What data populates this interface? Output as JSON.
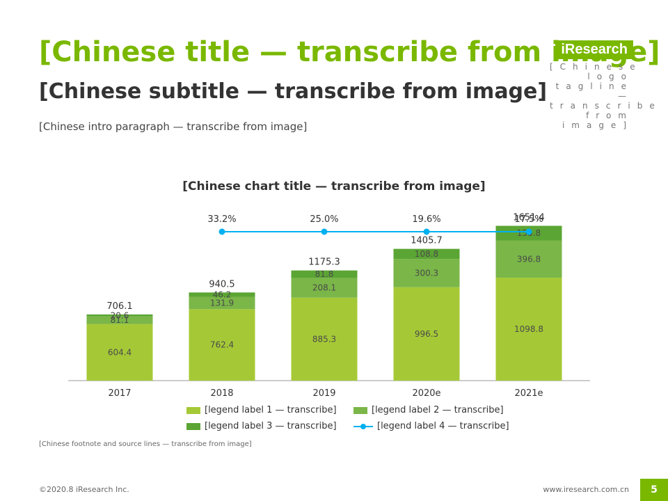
{
  "page": {
    "title": "[Chinese title — transcribe from image]",
    "subtitle": "[Chinese subtitle — transcribe from image]",
    "intro": "[Chinese intro paragraph — transcribe from image]",
    "logo_text": "iResearch",
    "logo_subtext": "[Chinese logo tagline — transcribe from image]",
    "note": "[Chinese footnote and source lines — transcribe from image]",
    "copyright": "©2020.8 iResearch Inc.",
    "website": "www.iresearch.com.cn",
    "page_number": "5",
    "colors": {
      "accent": "#7ab800",
      "game_market": "#a5c936",
      "streaming_market": "#7ab648",
      "commercial_market": "#5ba534",
      "growth_line": "#00b0f0"
    }
  },
  "chart_data": {
    "type": "bar",
    "title": "[Chinese chart title — transcribe from image]",
    "categories": [
      "2017",
      "2018",
      "2019",
      "2020e",
      "2021e"
    ],
    "series": [
      {
        "name": "[legend label 1 — transcribe]",
        "values": [
          604.4,
          762.4,
          885.3,
          996.5,
          1098.8
        ]
      },
      {
        "name": "[legend label 2 — transcribe]",
        "values": [
          81.1,
          131.9,
          208.1,
          300.3,
          396.8
        ]
      },
      {
        "name": "[legend label 3 — transcribe]",
        "values": [
          20.6,
          46.2,
          81.8,
          108.8,
          155.8
        ]
      }
    ],
    "totals": [
      706.1,
      940.5,
      1175.3,
      1405.7,
      1651.4
    ],
    "totals_labels": [
      "706.1",
      "940.5",
      "1175.3",
      "1405.7",
      "1651.4"
    ],
    "growth": {
      "name": "[legend label 4 — transcribe]",
      "values": [
        33.2,
        25.0,
        19.6,
        17.5
      ],
      "categories": [
        "2018",
        "2019",
        "2020e",
        "2021e"
      ],
      "labels": [
        "33.2%",
        "25.0%",
        "19.6%",
        "17.5%"
      ]
    },
    "ylim": [
      0,
      1800
    ],
    "grid": false,
    "legend_position": "bottom"
  }
}
